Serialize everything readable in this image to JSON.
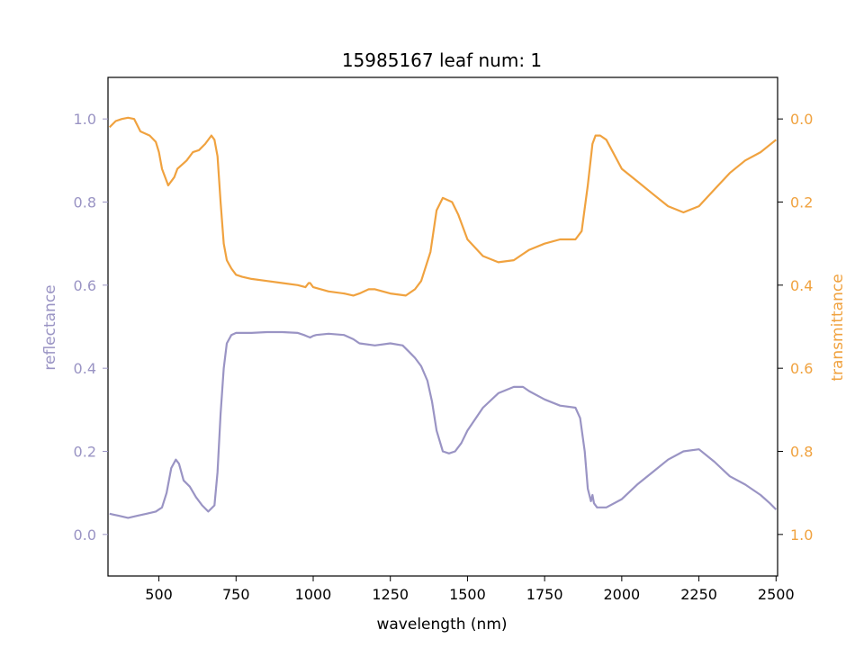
{
  "chart_data": {
    "type": "line",
    "title": "15985167 leaf num: 1",
    "xlabel": "wavelength (nm)",
    "xlim": [
      335,
      2505
    ],
    "x_ticks": [
      500,
      750,
      1000,
      1250,
      1500,
      1750,
      2000,
      2250,
      2500
    ],
    "grid": false,
    "legend": "none",
    "axes": {
      "left": {
        "label": "reflectance",
        "color": "#9a94c4",
        "ylim": [
          -0.1,
          1.1
        ],
        "ticks": [
          "0.0",
          "0.2",
          "0.4",
          "0.6",
          "0.8",
          "1.0"
        ],
        "tick_values": [
          0.0,
          0.2,
          0.4,
          0.6,
          0.8,
          1.0
        ]
      },
      "right": {
        "label": "transmittance",
        "color": "#f0a23f",
        "ylim": [
          1.1,
          -0.1
        ],
        "inverted": true,
        "ticks": [
          "0.0",
          "0.2",
          "0.4",
          "0.6",
          "0.8",
          "1.0"
        ],
        "tick_values": [
          0.0,
          0.2,
          0.4,
          0.6,
          0.8,
          1.0
        ]
      }
    },
    "series": [
      {
        "axis": "left",
        "color": "#9a94c4",
        "x": [
          340,
          370,
          400,
          430,
          460,
          490,
          510,
          525,
          540,
          555,
          565,
          580,
          600,
          620,
          640,
          660,
          680,
          690,
          700,
          710,
          720,
          735,
          750,
          800,
          850,
          900,
          950,
          970,
          980,
          990,
          1000,
          1010,
          1050,
          1100,
          1130,
          1150,
          1200,
          1250,
          1290,
          1310,
          1330,
          1350,
          1370,
          1385,
          1400,
          1420,
          1440,
          1460,
          1480,
          1500,
          1550,
          1600,
          1650,
          1680,
          1700,
          1750,
          1800,
          1850,
          1865,
          1880,
          1890,
          1900,
          1905,
          1910,
          1920,
          1950,
          2000,
          2050,
          2100,
          2150,
          2200,
          2250,
          2300,
          2350,
          2400,
          2450,
          2480,
          2500
        ],
        "y": [
          0.05,
          0.045,
          0.04,
          0.045,
          0.05,
          0.055,
          0.065,
          0.1,
          0.16,
          0.18,
          0.17,
          0.13,
          0.115,
          0.09,
          0.07,
          0.055,
          0.07,
          0.15,
          0.29,
          0.4,
          0.46,
          0.48,
          0.485,
          0.485,
          0.487,
          0.487,
          0.485,
          0.48,
          0.477,
          0.474,
          0.478,
          0.48,
          0.483,
          0.48,
          0.47,
          0.46,
          0.455,
          0.46,
          0.455,
          0.44,
          0.425,
          0.405,
          0.37,
          0.32,
          0.25,
          0.2,
          0.195,
          0.2,
          0.22,
          0.25,
          0.305,
          0.34,
          0.355,
          0.355,
          0.345,
          0.325,
          0.31,
          0.305,
          0.28,
          0.2,
          0.11,
          0.08,
          0.095,
          0.075,
          0.065,
          0.065,
          0.085,
          0.12,
          0.15,
          0.18,
          0.2,
          0.205,
          0.175,
          0.14,
          0.12,
          0.095,
          0.075,
          0.06
        ]
      },
      {
        "axis": "right",
        "color": "#f0a23f",
        "x": [
          340,
          360,
          380,
          400,
          420,
          440,
          470,
          490,
          500,
          510,
          530,
          550,
          560,
          575,
          590,
          610,
          630,
          650,
          670,
          680,
          690,
          700,
          710,
          720,
          735,
          750,
          770,
          800,
          850,
          900,
          950,
          975,
          985,
          990,
          1000,
          1050,
          1100,
          1130,
          1150,
          1180,
          1200,
          1250,
          1300,
          1330,
          1350,
          1380,
          1400,
          1420,
          1450,
          1470,
          1500,
          1550,
          1600,
          1650,
          1670,
          1700,
          1750,
          1800,
          1850,
          1870,
          1890,
          1905,
          1915,
          1930,
          1950,
          2000,
          2050,
          2100,
          2150,
          2200,
          2250,
          2300,
          2350,
          2400,
          2450,
          2500
        ],
        "y": [
          0.02,
          0.005,
          0.0,
          -0.003,
          0.0,
          0.03,
          0.04,
          0.055,
          0.08,
          0.12,
          0.16,
          0.14,
          0.12,
          0.11,
          0.1,
          0.08,
          0.075,
          0.06,
          0.04,
          0.05,
          0.09,
          0.2,
          0.3,
          0.34,
          0.36,
          0.375,
          0.38,
          0.385,
          0.39,
          0.395,
          0.4,
          0.405,
          0.395,
          0.395,
          0.405,
          0.415,
          0.42,
          0.425,
          0.42,
          0.41,
          0.41,
          0.42,
          0.425,
          0.41,
          0.39,
          0.32,
          0.22,
          0.19,
          0.2,
          0.23,
          0.29,
          0.33,
          0.345,
          0.34,
          0.33,
          0.315,
          0.3,
          0.29,
          0.29,
          0.27,
          0.16,
          0.06,
          0.04,
          0.04,
          0.05,
          0.12,
          0.15,
          0.18,
          0.21,
          0.225,
          0.21,
          0.17,
          0.13,
          0.1,
          0.08,
          0.05
        ]
      }
    ]
  }
}
